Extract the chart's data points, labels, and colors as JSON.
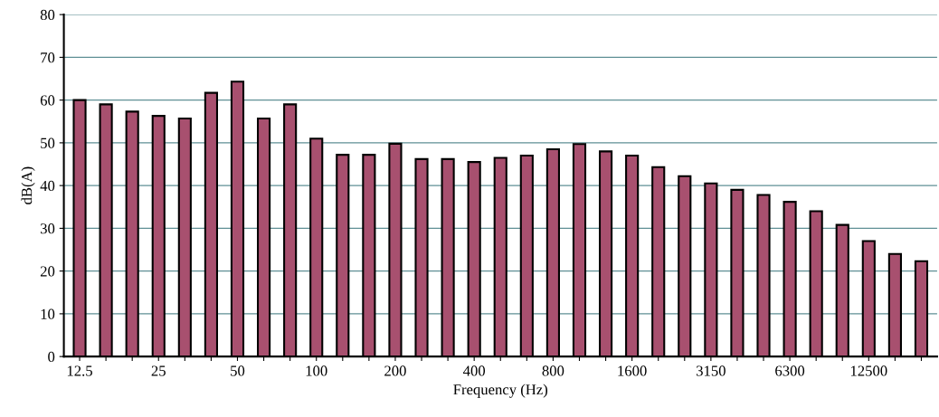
{
  "chart_data": {
    "type": "bar",
    "xlabel": "Frequency (Hz)",
    "ylabel": "dB(A)",
    "categories": [
      "12.5",
      null,
      null,
      "25",
      null,
      null,
      "50",
      null,
      null,
      "100",
      null,
      null,
      "200",
      null,
      null,
      "400",
      null,
      null,
      "800",
      null,
      null,
      "1600",
      null,
      null,
      "3150",
      null,
      null,
      "6300",
      null,
      null,
      "12500",
      null,
      null
    ],
    "values": [
      60,
      59,
      57.3,
      56.3,
      55.7,
      61.7,
      64.3,
      55.7,
      59,
      51,
      47.2,
      47.2,
      49.8,
      46.2,
      46.2,
      45.5,
      46.5,
      47,
      48.5,
      49.7,
      48,
      47,
      44.3,
      42.2,
      40.5,
      39,
      37.8,
      36.2,
      34,
      30.8,
      27,
      24,
      22.3
    ],
    "color": "#a8506f",
    "ylim": [
      0,
      80
    ],
    "yticks": [
      0,
      10,
      20,
      30,
      40,
      50,
      60,
      70,
      80
    ],
    "grid": "y"
  }
}
